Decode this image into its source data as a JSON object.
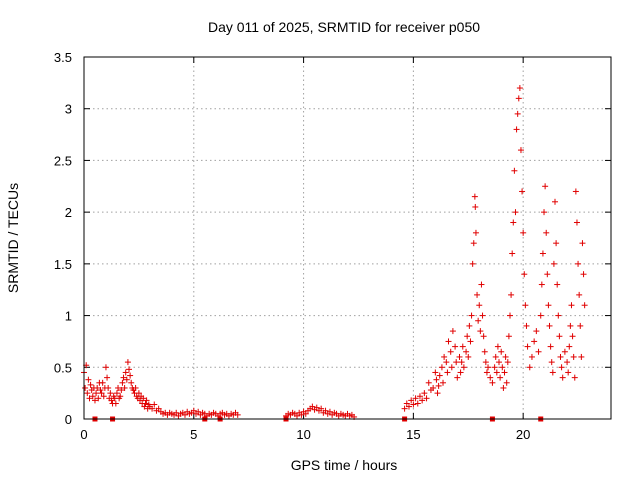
{
  "chart_data": {
    "type": "scatter",
    "title": "Day 011 of 2025, SRMTID for receiver p050",
    "xlabel": "GPS time / hours",
    "ylabel": "SRMTID / TECUs",
    "xlim": [
      0,
      24
    ],
    "ylim": [
      0,
      3.5
    ],
    "x_ticks": [
      0,
      5,
      10,
      15,
      20
    ],
    "y_ticks": [
      0,
      0.5,
      1,
      1.5,
      2,
      2.5,
      3,
      3.5
    ],
    "x_tick_labels": [
      "0",
      "5",
      "10",
      "15",
      "20"
    ],
    "y_tick_labels": [
      "0",
      "0.5",
      "1",
      "1.5",
      "2",
      "2.5",
      "3",
      "3.5"
    ],
    "grid": true,
    "marker": "+",
    "color": "#e00000",
    "series": [
      {
        "name": "p050",
        "points": [
          [
            0.0,
            0.45
          ],
          [
            0.05,
            0.3
          ],
          [
            0.1,
            0.52
          ],
          [
            0.15,
            0.25
          ],
          [
            0.2,
            0.38
          ],
          [
            0.25,
            0.2
          ],
          [
            0.3,
            0.33
          ],
          [
            0.35,
            0.28
          ],
          [
            0.4,
            0.22
          ],
          [
            0.45,
            0.3
          ],
          [
            0.5,
            0.18
          ],
          [
            0.55,
            0.25
          ],
          [
            0.6,
            0.3
          ],
          [
            0.65,
            0.2
          ],
          [
            0.7,
            0.35
          ],
          [
            0.75,
            0.28
          ],
          [
            0.8,
            0.25
          ],
          [
            0.85,
            0.35
          ],
          [
            0.9,
            0.22
          ],
          [
            0.95,
            0.3
          ],
          [
            1.0,
            0.5
          ],
          [
            1.05,
            0.4
          ],
          [
            1.1,
            0.3
          ],
          [
            1.15,
            0.2
          ],
          [
            1.2,
            0.25
          ],
          [
            1.25,
            0.18
          ],
          [
            1.3,
            0.15
          ],
          [
            1.35,
            0.22
          ],
          [
            1.4,
            0.2
          ],
          [
            1.45,
            0.15
          ],
          [
            1.5,
            0.25
          ],
          [
            1.55,
            0.3
          ],
          [
            1.6,
            0.2
          ],
          [
            1.65,
            0.22
          ],
          [
            1.7,
            0.28
          ],
          [
            1.75,
            0.35
          ],
          [
            1.8,
            0.4
          ],
          [
            1.85,
            0.3
          ],
          [
            1.9,
            0.45
          ],
          [
            1.95,
            0.38
          ],
          [
            2.0,
            0.55
          ],
          [
            2.05,
            0.48
          ],
          [
            2.1,
            0.42
          ],
          [
            2.15,
            0.35
          ],
          [
            2.2,
            0.3
          ],
          [
            2.25,
            0.28
          ],
          [
            2.3,
            0.25
          ],
          [
            2.35,
            0.3
          ],
          [
            2.4,
            0.22
          ],
          [
            2.45,
            0.2
          ],
          [
            2.5,
            0.25
          ],
          [
            2.55,
            0.18
          ],
          [
            2.6,
            0.22
          ],
          [
            2.65,
            0.15
          ],
          [
            2.7,
            0.2
          ],
          [
            2.75,
            0.12
          ],
          [
            2.8,
            0.15
          ],
          [
            2.85,
            0.18
          ],
          [
            2.9,
            0.1
          ],
          [
            2.95,
            0.14
          ],
          [
            3.0,
            0.12
          ],
          [
            3.1,
            0.1
          ],
          [
            3.2,
            0.14
          ],
          [
            3.3,
            0.08
          ],
          [
            3.4,
            0.1
          ],
          [
            3.5,
            0.07
          ],
          [
            3.6,
            0.05
          ],
          [
            3.7,
            0.06
          ],
          [
            3.8,
            0.04
          ],
          [
            3.9,
            0.06
          ],
          [
            4.0,
            0.05
          ],
          [
            4.1,
            0.04
          ],
          [
            4.2,
            0.06
          ],
          [
            4.3,
            0.03
          ],
          [
            4.4,
            0.05
          ],
          [
            4.5,
            0.06
          ],
          [
            4.6,
            0.04
          ],
          [
            4.7,
            0.07
          ],
          [
            4.8,
            0.05
          ],
          [
            4.9,
            0.06
          ],
          [
            5.0,
            0.08
          ],
          [
            5.1,
            0.05
          ],
          [
            5.2,
            0.07
          ],
          [
            5.3,
            0.04
          ],
          [
            5.4,
            0.06
          ],
          [
            5.5,
            0.05
          ],
          [
            5.6,
            0.03
          ],
          [
            5.7,
            0.05
          ],
          [
            5.8,
            0.04
          ],
          [
            5.9,
            0.06
          ],
          [
            6.0,
            0.05
          ],
          [
            6.1,
            0.03
          ],
          [
            6.2,
            0.05
          ],
          [
            6.3,
            0.06
          ],
          [
            6.4,
            0.04
          ],
          [
            6.5,
            0.05
          ],
          [
            6.6,
            0.03
          ],
          [
            6.7,
            0.05
          ],
          [
            6.8,
            0.04
          ],
          [
            6.9,
            0.06
          ],
          [
            7.0,
            0.04
          ],
          [
            9.2,
            0.03
          ],
          [
            9.3,
            0.05
          ],
          [
            9.4,
            0.04
          ],
          [
            9.5,
            0.06
          ],
          [
            9.6,
            0.05
          ],
          [
            9.7,
            0.03
          ],
          [
            9.8,
            0.06
          ],
          [
            9.9,
            0.04
          ],
          [
            10.0,
            0.07
          ],
          [
            10.1,
            0.05
          ],
          [
            10.2,
            0.08
          ],
          [
            10.3,
            0.1
          ],
          [
            10.4,
            0.12
          ],
          [
            10.5,
            0.09
          ],
          [
            10.6,
            0.11
          ],
          [
            10.7,
            0.08
          ],
          [
            10.8,
            0.1
          ],
          [
            10.9,
            0.06
          ],
          [
            11.0,
            0.08
          ],
          [
            11.1,
            0.05
          ],
          [
            11.2,
            0.07
          ],
          [
            11.3,
            0.04
          ],
          [
            11.4,
            0.06
          ],
          [
            11.5,
            0.05
          ],
          [
            11.6,
            0.03
          ],
          [
            11.7,
            0.05
          ],
          [
            11.8,
            0.04
          ],
          [
            11.9,
            0.03
          ],
          [
            12.0,
            0.05
          ],
          [
            12.1,
            0.03
          ],
          [
            12.2,
            0.04
          ],
          [
            12.3,
            0.02
          ],
          [
            14.6,
            0.1
          ],
          [
            14.7,
            0.15
          ],
          [
            14.8,
            0.12
          ],
          [
            14.9,
            0.18
          ],
          [
            15.0,
            0.14
          ],
          [
            15.1,
            0.2
          ],
          [
            15.2,
            0.15
          ],
          [
            15.3,
            0.22
          ],
          [
            15.4,
            0.18
          ],
          [
            15.5,
            0.25
          ],
          [
            15.6,
            0.2
          ],
          [
            15.7,
            0.35
          ],
          [
            15.8,
            0.28
          ],
          [
            15.9,
            0.3
          ],
          [
            16.0,
            0.45
          ],
          [
            16.05,
            0.38
          ],
          [
            16.1,
            0.25
          ],
          [
            16.15,
            0.32
          ],
          [
            16.2,
            0.42
          ],
          [
            16.3,
            0.5
          ],
          [
            16.35,
            0.35
          ],
          [
            16.4,
            0.6
          ],
          [
            16.5,
            0.55
          ],
          [
            16.55,
            0.45
          ],
          [
            16.6,
            0.75
          ],
          [
            16.7,
            0.65
          ],
          [
            16.75,
            0.5
          ],
          [
            16.8,
            0.85
          ],
          [
            16.9,
            0.7
          ],
          [
            16.95,
            0.55
          ],
          [
            17.0,
            0.4
          ],
          [
            17.1,
            0.6
          ],
          [
            17.15,
            0.45
          ],
          [
            17.2,
            0.55
          ],
          [
            17.25,
            0.7
          ],
          [
            17.3,
            0.5
          ],
          [
            17.4,
            0.65
          ],
          [
            17.45,
            0.8
          ],
          [
            17.5,
            0.6
          ],
          [
            17.55,
            0.9
          ],
          [
            17.6,
            0.75
          ],
          [
            17.65,
            1.0
          ],
          [
            17.7,
            1.5
          ],
          [
            17.75,
            1.7
          ],
          [
            17.8,
            2.15
          ],
          [
            17.82,
            2.05
          ],
          [
            17.85,
            1.8
          ],
          [
            17.9,
            1.2
          ],
          [
            17.95,
            0.95
          ],
          [
            18.0,
            1.1
          ],
          [
            18.05,
            0.85
          ],
          [
            18.1,
            1.3
          ],
          [
            18.15,
            1.0
          ],
          [
            18.2,
            0.8
          ],
          [
            18.25,
            0.65
          ],
          [
            18.3,
            0.55
          ],
          [
            18.35,
            0.45
          ],
          [
            18.4,
            0.5
          ],
          [
            18.5,
            0.4
          ],
          [
            18.6,
            0.35
          ],
          [
            18.7,
            0.5
          ],
          [
            18.75,
            0.6
          ],
          [
            18.8,
            0.45
          ],
          [
            18.85,
            0.7
          ],
          [
            18.9,
            0.55
          ],
          [
            18.95,
            0.4
          ],
          [
            19.0,
            0.65
          ],
          [
            19.05,
            0.5
          ],
          [
            19.1,
            0.3
          ],
          [
            19.15,
            0.45
          ],
          [
            19.2,
            0.6
          ],
          [
            19.25,
            0.35
          ],
          [
            19.3,
            0.55
          ],
          [
            19.35,
            0.8
          ],
          [
            19.4,
            1.0
          ],
          [
            19.45,
            1.2
          ],
          [
            19.5,
            1.6
          ],
          [
            19.55,
            1.9
          ],
          [
            19.6,
            2.4
          ],
          [
            19.65,
            2.0
          ],
          [
            19.7,
            2.8
          ],
          [
            19.75,
            2.95
          ],
          [
            19.8,
            3.1
          ],
          [
            19.85,
            3.2
          ],
          [
            19.9,
            2.6
          ],
          [
            19.95,
            2.2
          ],
          [
            20.0,
            1.8
          ],
          [
            20.05,
            1.4
          ],
          [
            20.1,
            1.1
          ],
          [
            20.15,
            0.9
          ],
          [
            20.2,
            0.7
          ],
          [
            20.3,
            0.5
          ],
          [
            20.4,
            0.6
          ],
          [
            20.5,
            0.75
          ],
          [
            20.6,
            0.85
          ],
          [
            20.7,
            0.65
          ],
          [
            20.8,
            1.0
          ],
          [
            20.85,
            1.3
          ],
          [
            20.9,
            1.6
          ],
          [
            20.95,
            2.0
          ],
          [
            21.0,
            2.25
          ],
          [
            21.05,
            1.8
          ],
          [
            21.1,
            1.4
          ],
          [
            21.15,
            1.1
          ],
          [
            21.2,
            0.9
          ],
          [
            21.25,
            0.7
          ],
          [
            21.3,
            0.55
          ],
          [
            21.35,
            0.45
          ],
          [
            21.4,
            1.5
          ],
          [
            21.45,
            2.1
          ],
          [
            21.5,
            1.7
          ],
          [
            21.55,
            1.3
          ],
          [
            21.6,
            1.0
          ],
          [
            21.65,
            0.8
          ],
          [
            21.7,
            0.6
          ],
          [
            21.75,
            0.5
          ],
          [
            21.8,
            0.4
          ],
          [
            21.9,
            0.65
          ],
          [
            22.0,
            0.55
          ],
          [
            22.05,
            0.45
          ],
          [
            22.1,
            0.7
          ],
          [
            22.15,
            0.9
          ],
          [
            22.2,
            1.1
          ],
          [
            22.25,
            0.8
          ],
          [
            22.3,
            0.6
          ],
          [
            22.35,
            0.4
          ],
          [
            22.4,
            2.2
          ],
          [
            22.45,
            1.9
          ],
          [
            22.5,
            1.5
          ],
          [
            22.55,
            1.2
          ],
          [
            22.6,
            0.9
          ],
          [
            22.65,
            0.6
          ],
          [
            22.7,
            1.7
          ],
          [
            22.75,
            1.4
          ],
          [
            22.8,
            1.1
          ]
        ]
      }
    ],
    "gap_markers_x": [
      0.5,
      1.3,
      5.5,
      6.2,
      9.2,
      14.6,
      18.6,
      20.8
    ]
  }
}
